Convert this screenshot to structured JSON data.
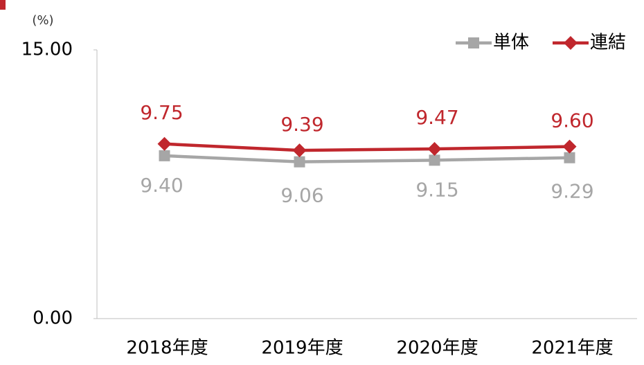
{
  "chart_data": {
    "type": "line",
    "unit_label": "(%)",
    "categories": [
      "2018年度",
      "2019年度",
      "2020年度",
      "2021年度"
    ],
    "series": [
      {
        "name": "単体",
        "color": "#a6a6a6",
        "marker": "square",
        "values": [
          9.4,
          9.06,
          9.15,
          9.29
        ],
        "value_labels": [
          "9.40",
          "9.06",
          "9.15",
          "9.29"
        ],
        "label_position": "below"
      },
      {
        "name": "連結",
        "color": "#c0272d",
        "marker": "diamond",
        "values": [
          9.75,
          9.39,
          9.47,
          9.6
        ],
        "value_labels": [
          "9.75",
          "9.39",
          "9.47",
          "9.60"
        ],
        "label_position": "above"
      }
    ],
    "ylim": [
      0,
      15
    ],
    "yticks": [
      {
        "value": 0,
        "label": "0.00"
      },
      {
        "value": 15,
        "label": "15.00"
      }
    ],
    "grid": false,
    "legend": "top-right"
  }
}
